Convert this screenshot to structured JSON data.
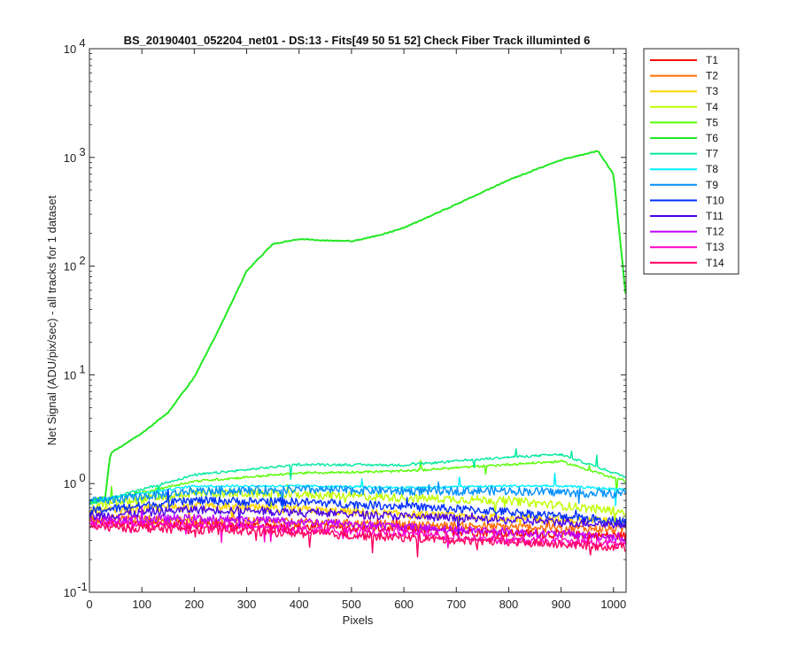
{
  "chart_data": {
    "type": "line",
    "title": "BS_20190401_052204_net01 - DS:13 - Fits[49  50  51  52]   Check Fiber     Track illuminted 6",
    "xlabel": "Pixels",
    "ylabel": "Net Signal (ADU/pix/sec) - all tracks for 1 dataset",
    "xlim": [
      0,
      1024
    ],
    "ylim": [
      0.1,
      10000
    ],
    "yscale": "log",
    "grid": false,
    "legend_position": "outside-top-right",
    "x_ticks": [
      "0",
      "100",
      "200",
      "300",
      "400",
      "500",
      "600",
      "700",
      "800",
      "900",
      "1000"
    ],
    "y_ticks": [
      {
        "base": "10",
        "exp": "-1"
      },
      {
        "base": "10",
        "exp": "0"
      },
      {
        "base": "10",
        "exp": "1"
      },
      {
        "base": "10",
        "exp": "2"
      },
      {
        "base": "10",
        "exp": "3"
      },
      {
        "base": "10",
        "exp": "4"
      }
    ],
    "series": [
      {
        "name": "T1",
        "color": "#ff0000",
        "x": [
          0,
          200,
          400,
          600,
          800,
          1024
        ],
        "y": [
          0.45,
          0.42,
          0.4,
          0.38,
          0.35,
          0.33
        ]
      },
      {
        "name": "T2",
        "color": "#ff6a00",
        "x": [
          0,
          200,
          400,
          600,
          800,
          1024
        ],
        "y": [
          0.48,
          0.46,
          0.44,
          0.42,
          0.4,
          0.38
        ]
      },
      {
        "name": "T3",
        "color": "#ffd400",
        "x": [
          0,
          200,
          400,
          600,
          800,
          1024
        ],
        "y": [
          0.55,
          0.62,
          0.58,
          0.52,
          0.48,
          0.45
        ]
      },
      {
        "name": "T4",
        "color": "#bfff00",
        "x": [
          0,
          200,
          400,
          600,
          800,
          1024
        ],
        "y": [
          0.62,
          0.82,
          0.8,
          0.74,
          0.7,
          0.55
        ]
      },
      {
        "name": "T5",
        "color": "#55ff00",
        "x": [
          0,
          200,
          400,
          600,
          800,
          900,
          1024
        ],
        "y": [
          0.66,
          1.05,
          1.25,
          1.3,
          1.5,
          1.6,
          1.05
        ]
      },
      {
        "name": "T6",
        "color": "#22e822",
        "x": [
          0,
          30,
          40,
          100,
          150,
          200,
          250,
          300,
          350,
          400,
          450,
          500,
          550,
          600,
          700,
          800,
          900,
          970,
          1000,
          1024
        ],
        "y": [
          0.7,
          0.75,
          1.9,
          2.9,
          4.5,
          9.5,
          28,
          90,
          160,
          178,
          172,
          170,
          190,
          225,
          370,
          620,
          950,
          1150,
          700,
          50
        ]
      },
      {
        "name": "T7",
        "color": "#00e8a0",
        "x": [
          0,
          200,
          400,
          600,
          800,
          900,
          1024
        ],
        "y": [
          0.65,
          1.2,
          1.5,
          1.48,
          1.75,
          1.85,
          1.15
        ]
      },
      {
        "name": "T8",
        "color": "#00f0ff",
        "x": [
          0,
          200,
          400,
          600,
          800,
          900,
          1024
        ],
        "y": [
          0.7,
          0.95,
          0.95,
          0.92,
          0.95,
          0.95,
          0.88
        ]
      },
      {
        "name": "T9",
        "color": "#0090ff",
        "x": [
          0,
          200,
          400,
          600,
          800,
          1024
        ],
        "y": [
          0.68,
          0.85,
          0.88,
          0.86,
          0.86,
          0.8
        ]
      },
      {
        "name": "T10",
        "color": "#0030ff",
        "x": [
          0,
          200,
          400,
          600,
          800,
          1024
        ],
        "y": [
          0.56,
          0.7,
          0.68,
          0.62,
          0.55,
          0.45
        ]
      },
      {
        "name": "T11",
        "color": "#4a00e8",
        "x": [
          0,
          200,
          400,
          600,
          800,
          1024
        ],
        "y": [
          0.5,
          0.58,
          0.55,
          0.5,
          0.46,
          0.42
        ]
      },
      {
        "name": "T12",
        "color": "#c000ff",
        "x": [
          0,
          200,
          400,
          600,
          800,
          1024
        ],
        "y": [
          0.46,
          0.48,
          0.45,
          0.4,
          0.36,
          0.32
        ]
      },
      {
        "name": "T13",
        "color": "#ff00c8",
        "x": [
          0,
          200,
          400,
          600,
          800,
          1024
        ],
        "y": [
          0.42,
          0.42,
          0.38,
          0.35,
          0.3,
          0.28
        ]
      },
      {
        "name": "T14",
        "color": "#ff0060",
        "x": [
          0,
          200,
          400,
          600,
          800,
          1024
        ],
        "y": [
          0.4,
          0.38,
          0.35,
          0.32,
          0.29,
          0.26
        ]
      }
    ]
  }
}
